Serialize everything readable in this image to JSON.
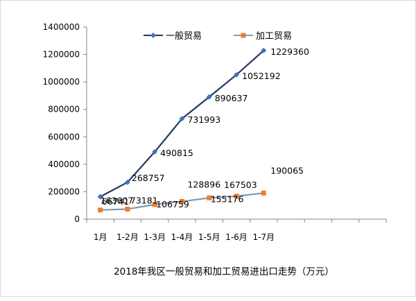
{
  "chart_data": {
    "type": "line",
    "title": "2018年我区一般贸易和加工贸易进出口走势（万元）",
    "categories": [
      "1月",
      "1-2月",
      "1-3月",
      "1-4月",
      "1-5月",
      "1-6月",
      "1-7月"
    ],
    "ylim": [
      0,
      1400000
    ],
    "y_ticks": [
      "0",
      "200000",
      "400000",
      "600000",
      "800000",
      "1000000",
      "1200000",
      "1400000"
    ],
    "grid": false,
    "legend_position": "top",
    "series": [
      {
        "name": "一般贸易",
        "color": "#1f3864",
        "marker_color": "#4472c4",
        "marker": "diamond",
        "values": [
          163607,
          268757,
          490815,
          731993,
          890637,
          1052192,
          1229360
        ],
        "labels": [
          "163607",
          "268757",
          "490815",
          "731993",
          "890637",
          "1052192",
          "1229360"
        ]
      },
      {
        "name": "加工贸易",
        "color": "#8497b0",
        "marker_color": "#ed7d31",
        "marker": "square",
        "values": [
          66741,
          73181,
          106759,
          128896,
          155176,
          167503,
          190065
        ],
        "labels": [
          "66741",
          "73181",
          "106759",
          "128896",
          "155176",
          "167503",
          "190065"
        ]
      }
    ]
  }
}
